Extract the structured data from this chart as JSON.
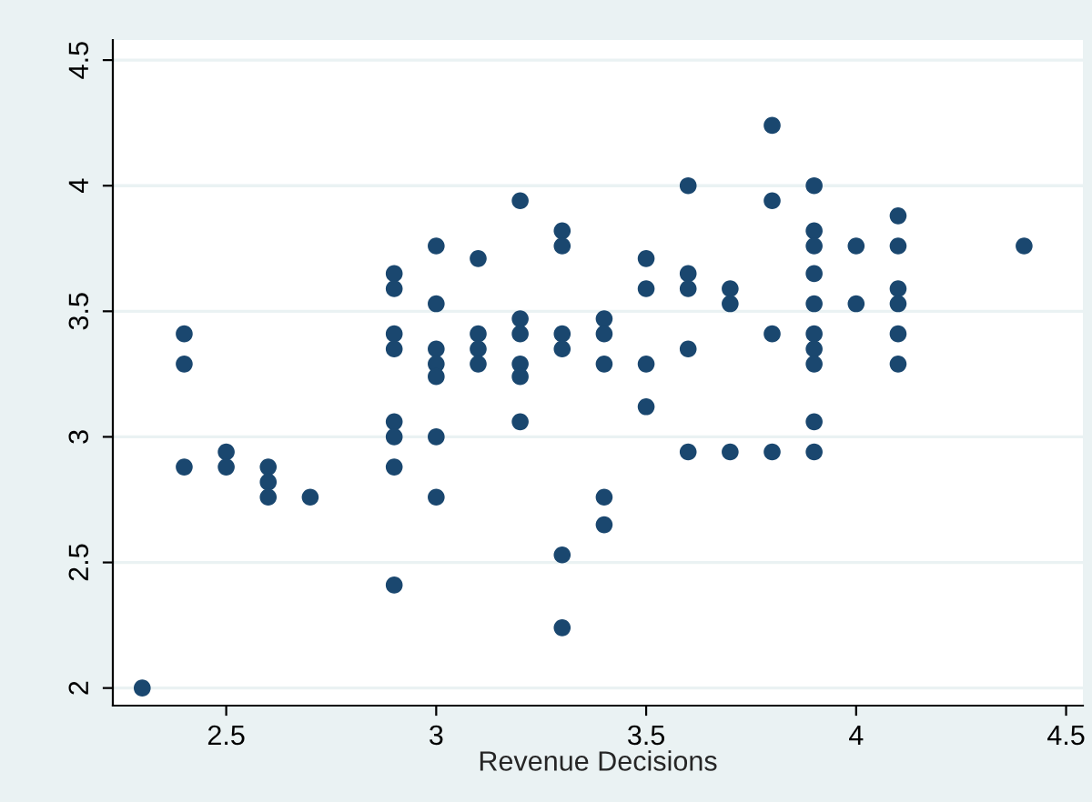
{
  "chart_data": {
    "type": "scatter",
    "xlabel": "Revenue Decisions",
    "x": [
      2.3,
      2.4,
      2.4,
      2.4,
      2.5,
      2.5,
      2.6,
      2.6,
      2.6,
      2.7,
      2.9,
      2.9,
      2.9,
      2.9,
      2.9,
      2.9,
      2.9,
      2.9,
      3.0,
      3.0,
      3.0,
      3.0,
      3.0,
      3.0,
      3.0,
      3.1,
      3.1,
      3.1,
      3.1,
      3.2,
      3.2,
      3.2,
      3.2,
      3.2,
      3.2,
      3.3,
      3.3,
      3.3,
      3.3,
      3.3,
      3.3,
      3.4,
      3.4,
      3.4,
      3.4,
      3.4,
      3.5,
      3.5,
      3.5,
      3.5,
      3.6,
      3.6,
      3.6,
      3.6,
      3.6,
      3.7,
      3.7,
      3.7,
      3.8,
      3.8,
      3.8,
      3.8,
      3.9,
      3.9,
      3.9,
      3.9,
      3.9,
      3.9,
      3.9,
      3.9,
      3.9,
      3.9,
      4.0,
      4.0,
      4.1,
      4.1,
      4.1,
      4.1,
      4.1,
      4.1,
      4.4
    ],
    "series": [
      {
        "color": "#1a476f",
        "values": [
          2.0,
          3.41,
          3.29,
          2.88,
          2.94,
          2.88,
          2.88,
          2.82,
          2.76,
          2.76,
          3.65,
          3.59,
          3.41,
          3.35,
          3.06,
          3.0,
          2.88,
          2.41,
          3.76,
          3.53,
          3.35,
          3.29,
          3.24,
          3.0,
          2.76,
          3.71,
          3.41,
          3.35,
          3.29,
          3.94,
          3.47,
          3.41,
          3.29,
          3.24,
          3.06,
          3.82,
          3.76,
          3.41,
          3.35,
          2.53,
          2.24,
          3.47,
          3.41,
          3.29,
          2.76,
          2.65,
          3.71,
          3.59,
          3.29,
          3.12,
          4.0,
          3.65,
          3.59,
          3.35,
          2.94,
          3.59,
          3.53,
          2.94,
          4.24,
          3.94,
          3.41,
          2.94,
          4.0,
          3.82,
          3.76,
          3.65,
          3.53,
          3.41,
          3.35,
          3.29,
          3.06,
          2.94,
          3.76,
          3.53,
          3.88,
          3.76,
          3.59,
          3.53,
          3.41,
          3.29,
          3.76
        ]
      }
    ],
    "xlim": [
      2.23,
      4.54
    ],
    "ylim": [
      1.93,
      4.58
    ],
    "xticks": [
      2.5,
      3,
      3.5,
      4,
      4.5
    ],
    "yticks": [
      2,
      2.5,
      3,
      3.5,
      4,
      4.5
    ],
    "grid": "y",
    "marker": "circle"
  }
}
